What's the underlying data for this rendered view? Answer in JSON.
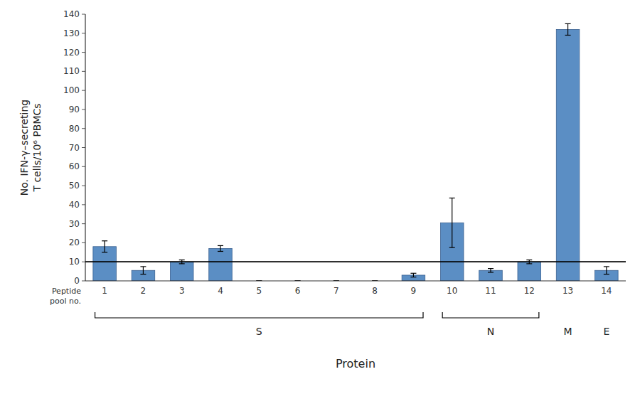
{
  "chart_data": {
    "type": "bar",
    "categories": [
      "1",
      "2",
      "3",
      "4",
      "5",
      "6",
      "7",
      "8",
      "9",
      "10",
      "11",
      "12",
      "13",
      "14"
    ],
    "values": [
      18,
      5.5,
      10,
      17,
      0,
      0,
      0,
      0,
      3,
      30.5,
      5.5,
      10,
      132,
      5.5
    ],
    "errors": [
      3,
      2,
      1,
      1.5,
      0,
      0,
      0,
      0,
      1,
      13,
      1,
      1,
      3,
      2
    ],
    "color": "#5b8ec4",
    "threshold": 10,
    "ylim": [
      0,
      140
    ],
    "yticks": [
      0,
      10,
      20,
      30,
      40,
      50,
      60,
      70,
      80,
      90,
      100,
      110,
      120,
      130,
      140
    ],
    "y_label": "No. IFN-γ–secreting\nT cells/10⁶ PBMCs",
    "x_tick_title": "Peptide\npool no.",
    "x_label": "Protein",
    "groups": [
      {
        "label": "S",
        "first": "1",
        "last": "9"
      },
      {
        "label": "N",
        "first": "10",
        "last": "12"
      },
      {
        "label": "M",
        "first": "13",
        "last": "13"
      },
      {
        "label": "E",
        "first": "14",
        "last": "14"
      }
    ],
    "grid": false
  }
}
